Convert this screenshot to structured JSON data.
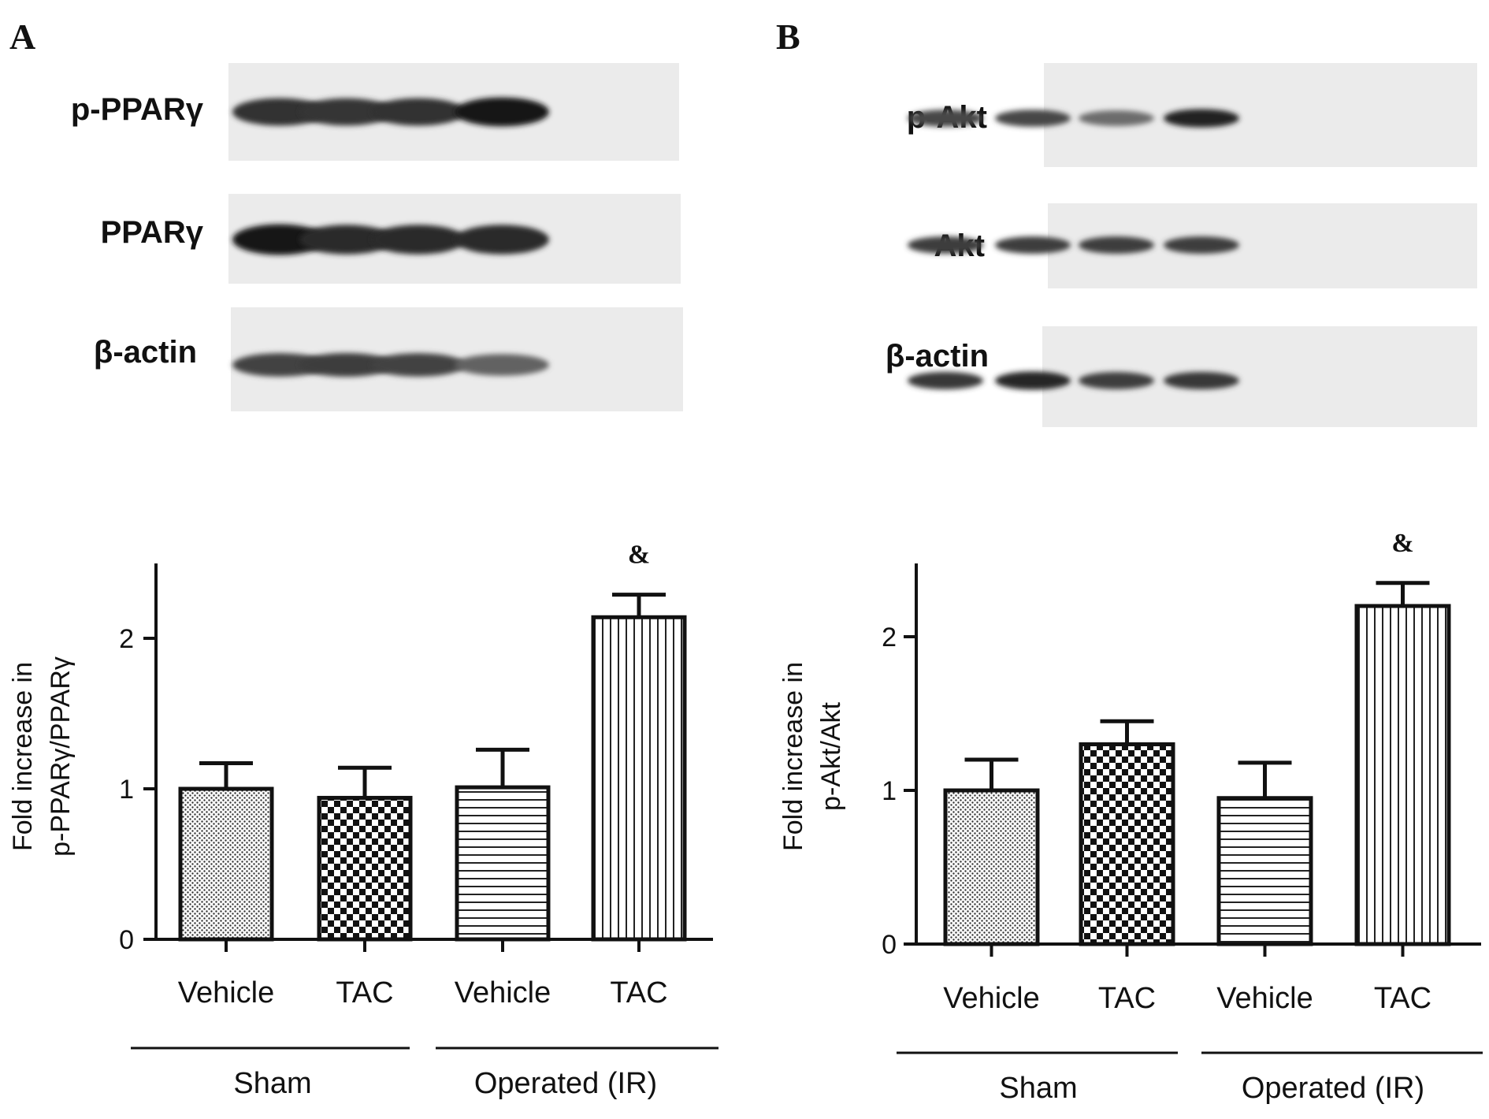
{
  "panels": [
    {
      "letter": "A",
      "blots": [
        {
          "label": "p-PPARγ",
          "intensity": [
            0.82,
            0.8,
            0.82,
            0.95
          ]
        },
        {
          "label": "PPARγ",
          "intensity": [
            0.95,
            0.85,
            0.85,
            0.85
          ]
        },
        {
          "label": "β-actin",
          "intensity": [
            0.72,
            0.75,
            0.72,
            0.55
          ]
        }
      ],
      "group_labels": [
        "Sham",
        "Operated (IR)"
      ]
    },
    {
      "letter": "B",
      "blots": [
        {
          "label": "p-Akt",
          "intensity": [
            0.7,
            0.7,
            0.5,
            0.9
          ]
        },
        {
          "label": "Akt",
          "intensity": [
            0.75,
            0.75,
            0.75,
            0.75
          ]
        },
        {
          "label": "β-actin",
          "intensity": [
            0.78,
            0.88,
            0.75,
            0.78
          ]
        }
      ],
      "group_labels": [
        "Sham",
        "Operated (IR)"
      ]
    }
  ],
  "chart_data": [
    {
      "type": "bar",
      "categories": [
        "Vehicle",
        "TAC",
        "Vehicle",
        "TAC"
      ],
      "values": [
        1.0,
        0.94,
        1.01,
        2.14
      ],
      "errors": [
        0.17,
        0.2,
        0.25,
        0.15
      ],
      "patterns": [
        "fine-dots",
        "checker",
        "horizontal-lines",
        "vertical-lines"
      ],
      "annotations": [
        "",
        "",
        "",
        "&"
      ],
      "ylabel_lines": [
        "Fold increase in",
        "p-PPARγ/PPARγ"
      ],
      "yticks": [
        "0",
        "1",
        "2"
      ],
      "ylim": [
        0,
        2.45
      ]
    },
    {
      "type": "bar",
      "categories": [
        "Vehicle",
        "TAC",
        "Vehicle",
        "TAC"
      ],
      "values": [
        1.0,
        1.3,
        0.95,
        2.2
      ],
      "errors": [
        0.2,
        0.15,
        0.23,
        0.15
      ],
      "patterns": [
        "fine-dots",
        "checker",
        "horizontal-lines",
        "vertical-lines"
      ],
      "annotations": [
        "",
        "",
        "",
        "&"
      ],
      "ylabel_lines": [
        "Fold increase in",
        "p-Akt/Akt"
      ],
      "yticks": [
        "0",
        "1",
        "2"
      ],
      "ylim": [
        0,
        2.45
      ]
    }
  ]
}
